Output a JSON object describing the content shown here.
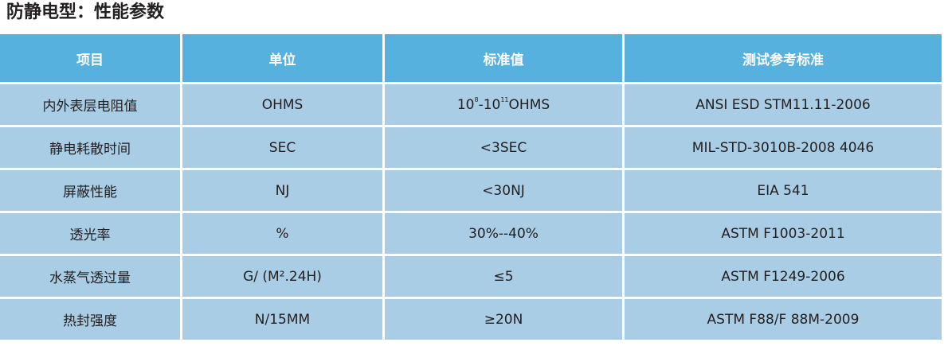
{
  "title": "防静电型：性能参数",
  "header": [
    "项目",
    "单位",
    "标准值",
    "测试参考标准"
  ],
  "rows": [
    {
      "item": "内外表层电阻值",
      "unit": "OHMS",
      "value_base": "10",
      "value_exp1": "8",
      "value_mid": "-10",
      "value_exp2": "11",
      "value_tail": "OHMS",
      "standard": "ANSI ESD STM11.11-2006"
    },
    {
      "item": "静电耗散时间",
      "unit": "SEC",
      "value": "<3SEC",
      "standard": "MIL-STD-3010B-2008 4046"
    },
    {
      "item": "屏蔽性能",
      "unit": "NJ",
      "value": "<30NJ",
      "standard": "EIA 541"
    },
    {
      "item": "透光率",
      "unit": "%",
      "value": "30%--40%",
      "standard": "ASTM F1003-2011"
    },
    {
      "item": "水蒸气透过量",
      "unit": "G/ (M².24H)",
      "value": "≤5",
      "standard": "ASTM F1249-2006"
    },
    {
      "item": "热封强度",
      "unit": "N/15MM",
      "value": "≥20N",
      "standard": "ASTM F88/F 88M-2009"
    }
  ]
}
